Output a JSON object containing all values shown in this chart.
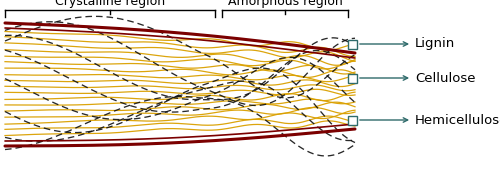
{
  "figsize": [
    5.0,
    1.71
  ],
  "dpi": 100,
  "background_color": "#ffffff",
  "lignin_color": "#7B0000",
  "cellulose_color": "#DAA000",
  "dash_color": "#111111",
  "label_color": "#000000",
  "arrow_color": "#2F6B6B",
  "label_fontsize": 9.5,
  "bracket_label_fontsize": 9,
  "crystalline_label": "Crystalline region",
  "amorphous_label": "Amorphous region",
  "lignin_label": "Lignin",
  "cellulose_label": "Cellulose",
  "hemicellulose_label": "Hemicellulose"
}
